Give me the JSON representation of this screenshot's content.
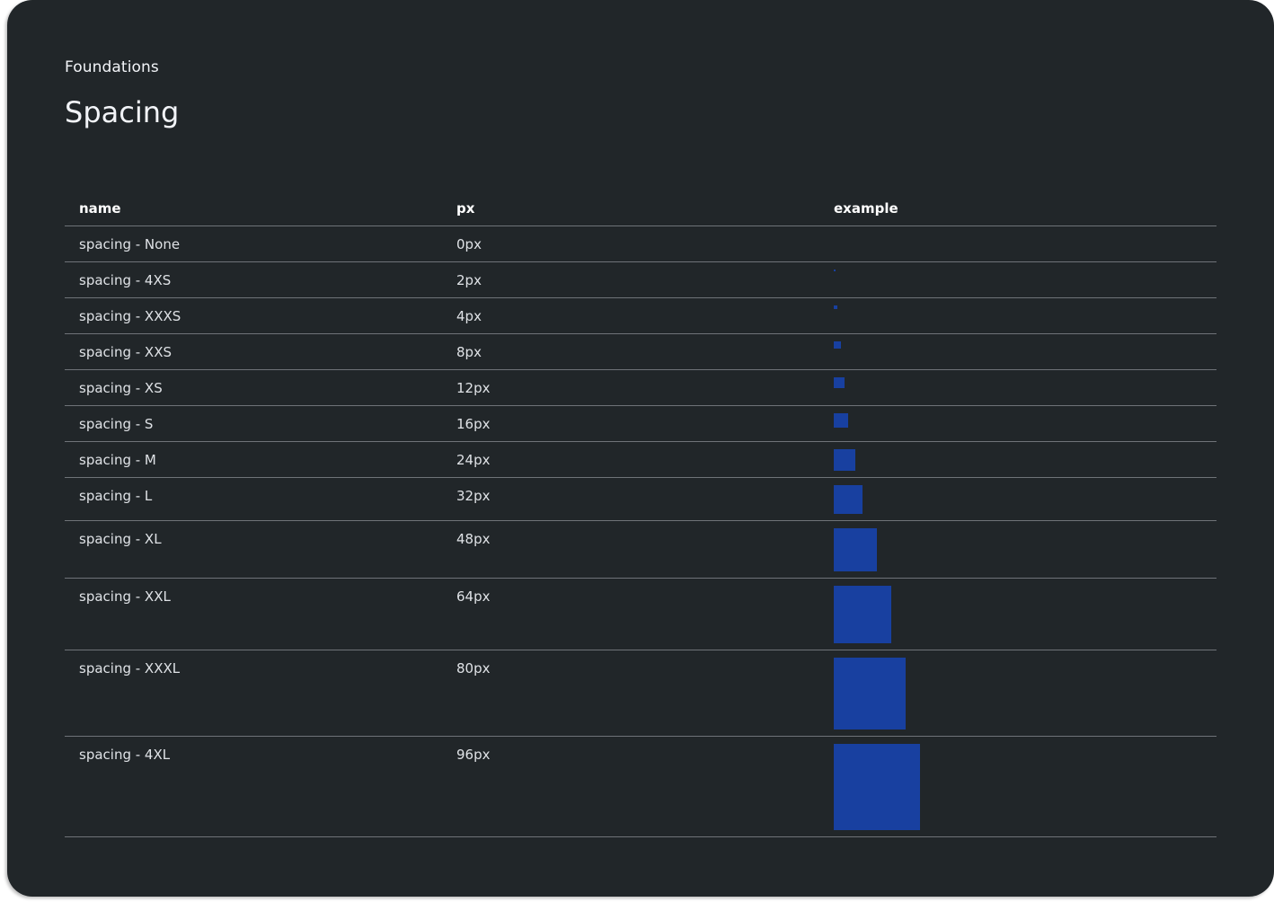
{
  "header": {
    "eyebrow": "Foundations",
    "title": "Spacing"
  },
  "table": {
    "columns": [
      "name",
      "px",
      "example"
    ],
    "rows": [
      {
        "name": "spacing - None",
        "px_label": "0px",
        "value": 0
      },
      {
        "name": "spacing - 4XS",
        "px_label": "2px",
        "value": 2
      },
      {
        "name": "spacing - XXXS",
        "px_label": "4px",
        "value": 4
      },
      {
        "name": "spacing - XXS",
        "px_label": "8px",
        "value": 8
      },
      {
        "name": "spacing - XS",
        "px_label": "12px",
        "value": 12
      },
      {
        "name": "spacing - S",
        "px_label": "16px",
        "value": 16
      },
      {
        "name": "spacing - M",
        "px_label": "24px",
        "value": 24
      },
      {
        "name": "spacing - L",
        "px_label": "32px",
        "value": 32
      },
      {
        "name": "spacing - XL",
        "px_label": "48px",
        "value": 48
      },
      {
        "name": "spacing - XXL",
        "px_label": "64px",
        "value": 64
      },
      {
        "name": "spacing - XXXL",
        "px_label": "80px",
        "value": 80
      },
      {
        "name": "spacing - 4XL",
        "px_label": "96px",
        "value": 96
      }
    ]
  },
  "colors": {
    "background": "#212629",
    "swatch": "#1840a0",
    "divider": "#6f7378"
  }
}
